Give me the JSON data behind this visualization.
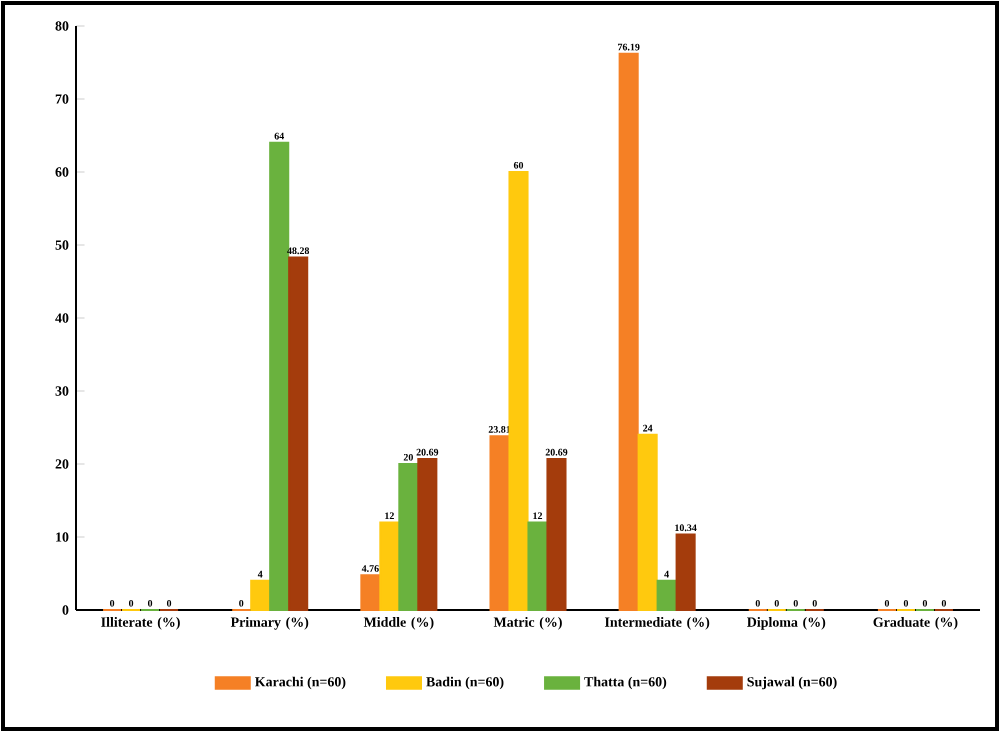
{
  "chart_data": {
    "type": "bar",
    "categories": [
      "Illiterate (%)",
      "Primary (%)",
      "Middle (%)",
      "Matric (%)",
      "Intermediate (%)",
      "Diploma (%)",
      "Graduate (%)"
    ],
    "series": [
      {
        "name": "Karachi (n=60)",
        "color": "#f58025",
        "values": [
          0,
          0,
          4.76,
          23.81,
          76.19,
          0,
          0
        ]
      },
      {
        "name": "Badin (n=60)",
        "color": "#ffc90e",
        "values": [
          0,
          4,
          12,
          60,
          24,
          0,
          0
        ]
      },
      {
        "name": "Thatta (n=60)",
        "color": "#6ab23e",
        "values": [
          0,
          64,
          20,
          12,
          4,
          0,
          0
        ]
      },
      {
        "name": "Sujawal (n=60)",
        "color": "#a43c0c",
        "values": [
          0,
          48.28,
          20.69,
          20.69,
          10.34,
          0,
          0
        ]
      }
    ],
    "ylim": [
      0,
      80
    ],
    "yticks": [
      0,
      10,
      20,
      30,
      40,
      50,
      60,
      70,
      80
    ],
    "data_labels": true,
    "legend": "bottom"
  }
}
